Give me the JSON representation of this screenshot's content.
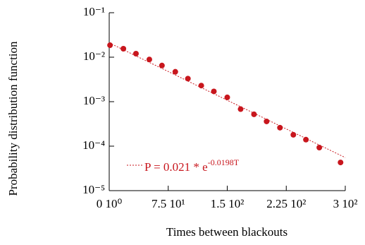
{
  "chart_data": {
    "type": "scatter",
    "xlabel": "Times between blackouts",
    "ylabel": "Probability distribution function",
    "log_y": true,
    "color": "#c8161d",
    "x": [
      1,
      18,
      34,
      51,
      67,
      84,
      100,
      117,
      133,
      150,
      167,
      184,
      200,
      217,
      234,
      250,
      267,
      294
    ],
    "values": [
      0.0186,
      0.0155,
      0.012,
      0.0089,
      0.0065,
      0.0047,
      0.0033,
      0.0023,
      0.0017,
      0.00125,
      0.00068,
      0.00052,
      0.00036,
      0.00026,
      0.00018,
      0.00014,
      9.3e-05,
      4.3e-05
    ],
    "xlim": [
      0,
      300
    ],
    "xticks": [
      {
        "value": 0,
        "label": "0 10⁰"
      },
      {
        "value": 75,
        "label": "7.5 10¹"
      },
      {
        "value": 150,
        "label": "1.5 10²"
      },
      {
        "value": 225,
        "label": "2.25 10²"
      },
      {
        "value": 300,
        "label": "3 10²"
      }
    ],
    "ylim": [
      1e-05,
      0.1
    ],
    "yticks": [
      {
        "value": 1e-05,
        "label": "10⁻⁵"
      },
      {
        "value": 0.0001,
        "label": "10⁻⁴"
      },
      {
        "value": 0.001,
        "label": "10⁻³"
      },
      {
        "value": 0.01,
        "label": "10⁻²"
      },
      {
        "value": 0.1,
        "label": "10⁻¹"
      }
    ],
    "fit": {
      "a": 0.021,
      "b": -0.0198
    },
    "annotation": {
      "text": "P = 0.021 * e",
      "superscript": "-0.0198T"
    }
  }
}
